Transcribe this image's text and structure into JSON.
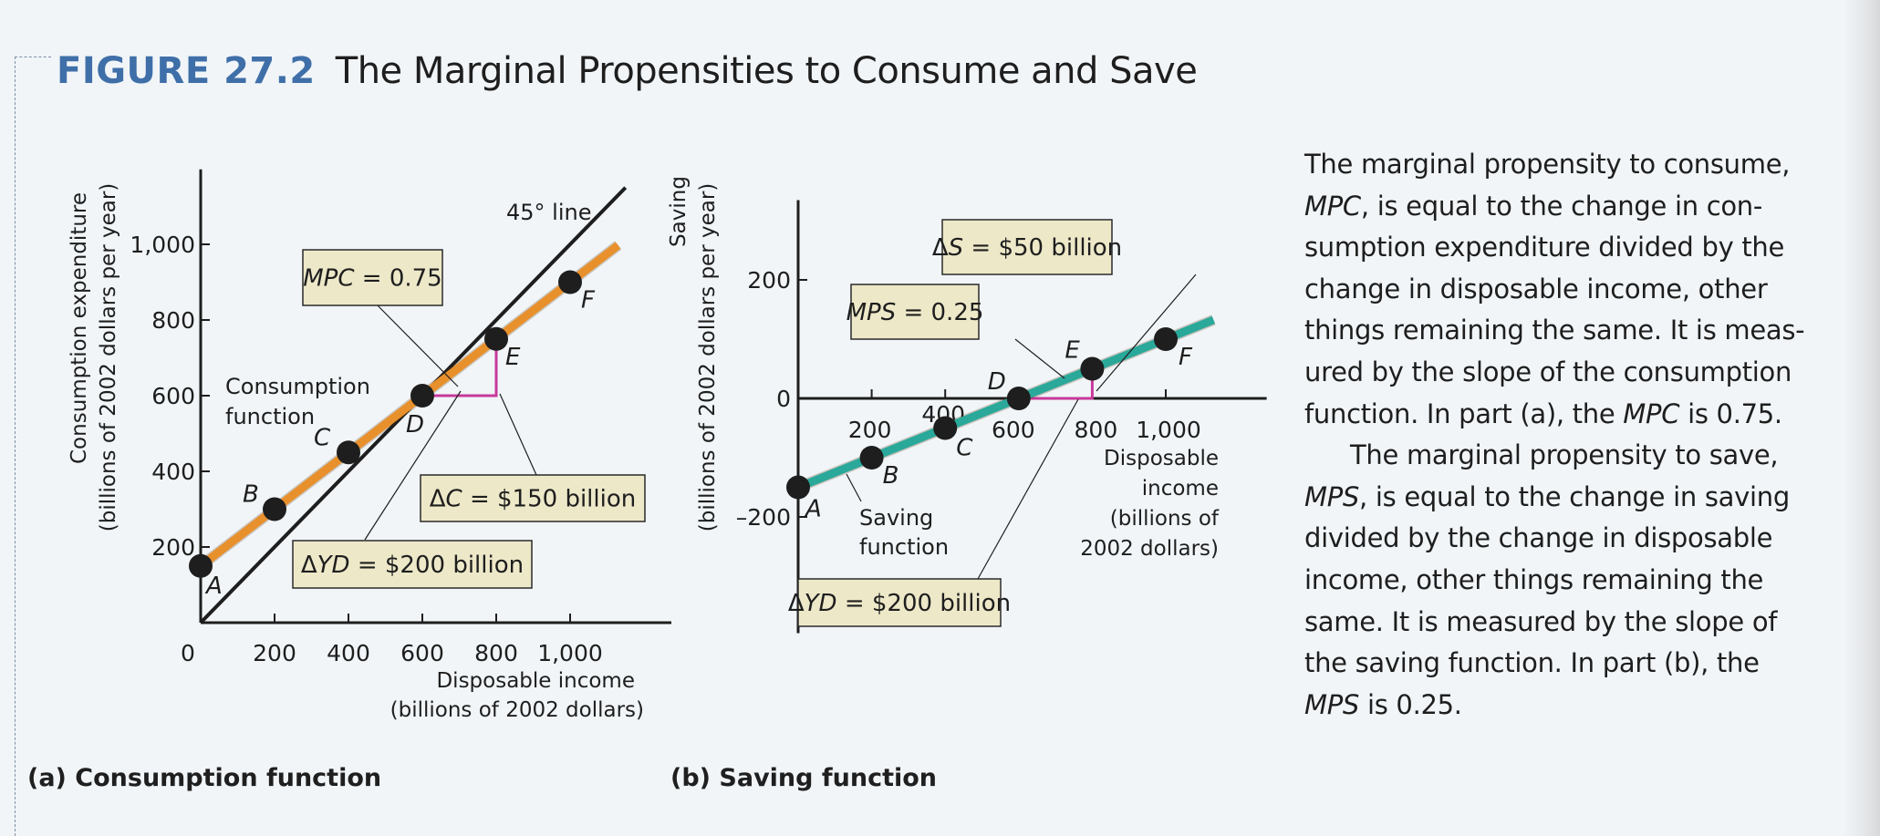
{
  "figure": {
    "number": "FIGURE 27.2",
    "title": "The Marginal Propensities to Consume and Save",
    "accent_color": "#3f6fa8"
  },
  "colors": {
    "consumption_line": "#e8902c",
    "saving_line": "#2aa89a",
    "delta_triangle": "#c8399b",
    "reference_line": "#1e1e1e",
    "note_box": "#ede8c8"
  },
  "chart_data": [
    {
      "id": "consumption",
      "type": "line",
      "caption": "(a) Consumption function",
      "xlabel": [
        "Disposable income",
        "(billions of 2002 dollars)"
      ],
      "ylabel": [
        "Consumption expenditure",
        "(billions of 2002 dollars per year)"
      ],
      "xlim": [
        0,
        1200
      ],
      "ylim": [
        0,
        1150
      ],
      "xticks": [
        0,
        200,
        400,
        600,
        800,
        1000
      ],
      "xtick_labels": [
        "0",
        "200",
        "400",
        "600",
        "800",
        "1,000"
      ],
      "yticks": [
        200,
        400,
        600,
        800,
        1000
      ],
      "ytick_labels": [
        "200",
        "400",
        "600",
        "800",
        "1,000"
      ],
      "reference_line": {
        "label": "45° line",
        "x": [
          0,
          1150
        ],
        "y": [
          0,
          1150
        ]
      },
      "series": [
        {
          "name": "Consumption function",
          "label_lines": [
            "Consumption",
            "function"
          ],
          "x": [
            0,
            200,
            400,
            600,
            800,
            1000
          ],
          "y": [
            150,
            300,
            450,
            600,
            750,
            900
          ],
          "line_extent": [
            0,
            1130
          ],
          "points": [
            "A",
            "B",
            "C",
            "D",
            "E",
            "F"
          ]
        }
      ],
      "delta": {
        "from": [
          600,
          600
        ],
        "to": [
          800,
          750
        ]
      },
      "annotations": [
        {
          "id": "mpc",
          "parts": [
            {
              "t": "MPC",
              "i": true
            },
            {
              "t": " = 0.75",
              "i": false
            }
          ]
        },
        {
          "id": "dc",
          "parts": [
            {
              "t": "Δ",
              "i": false
            },
            {
              "t": "C",
              "i": true
            },
            {
              "t": " = $150 billion",
              "i": false
            }
          ]
        },
        {
          "id": "dyd",
          "parts": [
            {
              "t": "Δ",
              "i": false
            },
            {
              "t": "YD",
              "i": true
            },
            {
              "t": " = $200 billion",
              "i": false
            }
          ]
        }
      ]
    },
    {
      "id": "saving",
      "type": "line",
      "caption": "(b) Saving function",
      "xlabel": [
        "Disposable",
        "income",
        "(billions of",
        "2002 dollars)"
      ],
      "ylabel": [
        "Saving",
        "(billions of 2002 dollars per year)"
      ],
      "xlim": [
        0,
        1200
      ],
      "ylim": [
        -350,
        350
      ],
      "xticks": [
        200,
        400,
        600,
        800,
        1000
      ],
      "xtick_labels": [
        "200",
        "400",
        "600",
        "800",
        "1,000"
      ],
      "yticks": [
        -200,
        0,
        200
      ],
      "ytick_labels": [
        "–200",
        "0",
        "200"
      ],
      "series": [
        {
          "name": "Saving function",
          "label_lines": [
            "Saving",
            "function"
          ],
          "x": [
            0,
            200,
            400,
            600,
            800,
            1000
          ],
          "y": [
            -150,
            -100,
            -50,
            0,
            50,
            100
          ],
          "line_extent": [
            0,
            1130
          ],
          "points": [
            "A",
            "B",
            "C",
            "D",
            "E",
            "F"
          ]
        }
      ],
      "delta": {
        "from": [
          600,
          0
        ],
        "to": [
          800,
          50
        ]
      },
      "annotations": [
        {
          "id": "ds",
          "parts": [
            {
              "t": "Δ",
              "i": false
            },
            {
              "t": "S",
              "i": true
            },
            {
              "t": " = $50 billion",
              "i": false
            }
          ]
        },
        {
          "id": "mps",
          "parts": [
            {
              "t": "MPS",
              "i": true
            },
            {
              "t": " = 0.25",
              "i": false
            }
          ]
        },
        {
          "id": "dyd",
          "parts": [
            {
              "t": "Δ",
              "i": false
            },
            {
              "t": "YD",
              "i": true
            },
            {
              "t": " = $200 billion",
              "i": false
            }
          ]
        }
      ]
    }
  ],
  "body_text": {
    "paragraph1": [
      {
        "t": "The marginal propensity to consume,",
        "i": false,
        "br": true
      },
      {
        "t": "MPC",
        "i": true
      },
      {
        "t": ", is equal to the change in con-",
        "i": false,
        "br": true
      },
      {
        "t": "sumption expenditure divided by the",
        "i": false,
        "br": true
      },
      {
        "t": "change in disposable income, other",
        "i": false,
        "br": true
      },
      {
        "t": "things remaining the same. It is meas-",
        "i": false,
        "br": true
      },
      {
        "t": "ured by the slope of the consumption",
        "i": false,
        "br": true
      },
      {
        "t": "function. In part (a), the ",
        "i": false
      },
      {
        "t": "MPC",
        "i": true
      },
      {
        "t": " is 0.75.",
        "i": false
      }
    ],
    "paragraph2": [
      {
        "t": "The marginal propensity to save,",
        "i": false,
        "br": true
      },
      {
        "t": "MPS",
        "i": true
      },
      {
        "t": ", is equal to the change in saving",
        "i": false,
        "br": true
      },
      {
        "t": "divided by the change in disposable",
        "i": false,
        "br": true
      },
      {
        "t": "income, other things remaining the",
        "i": false,
        "br": true
      },
      {
        "t": "same. It is measured by the slope of",
        "i": false,
        "br": true
      },
      {
        "t": "the saving function. In part (b), the",
        "i": false,
        "br": true
      },
      {
        "t": "MPS",
        "i": true
      },
      {
        "t": " is 0.25.",
        "i": false
      }
    ]
  }
}
